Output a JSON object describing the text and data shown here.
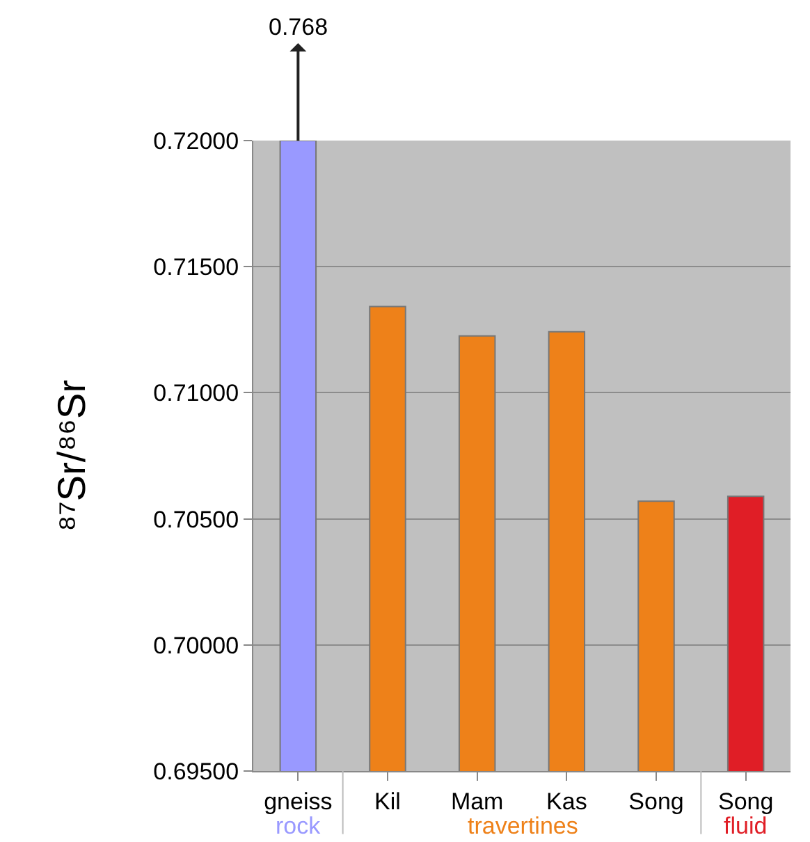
{
  "chart_data": {
    "type": "bar",
    "ylabel": "⁸⁷Sr/⁸⁶Sr",
    "categories": [
      "gneiss",
      "Kil",
      "Mam",
      "Kas",
      "Song",
      "Song"
    ],
    "values": [
      0.72,
      0.71342,
      0.71225,
      0.71242,
      0.7057,
      0.70589
    ],
    "colors": [
      "#9999ff",
      "#ee8119",
      "#ee8119",
      "#ee8119",
      "#ee8119",
      "#e01e26"
    ],
    "ylim": [
      0.695,
      0.72
    ],
    "yticks": [
      {
        "value": 0.695,
        "label": "0.69500"
      },
      {
        "value": 0.7,
        "label": "0.70000"
      },
      {
        "value": 0.705,
        "label": "0.70500"
      },
      {
        "value": 0.71,
        "label": "0.71000"
      },
      {
        "value": 0.715,
        "label": "0.71500"
      },
      {
        "value": 0.72,
        "label": "0.72000"
      }
    ],
    "grid": "y",
    "legend": false,
    "annotations": [
      {
        "text": "0.768",
        "x": "gneiss",
        "y": 0.72
      },
      "rock",
      "travertines",
      "fluid"
    ]
  }
}
